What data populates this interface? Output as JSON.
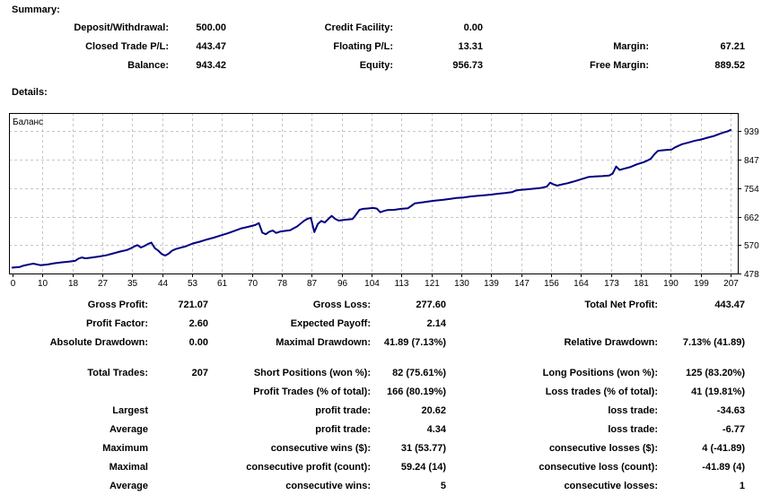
{
  "headings": {
    "summary": "Summary:",
    "details": "Details:"
  },
  "summary": {
    "rows": [
      {
        "l1": "Deposit/Withdrawal:",
        "v1": "500.00",
        "l2": "Credit Facility:",
        "v2": "0.00",
        "l3": "",
        "v3": ""
      },
      {
        "l1": "Closed Trade P/L:",
        "v1": "443.47",
        "l2": "Floating P/L:",
        "v2": "13.31",
        "l3": "Margin:",
        "v3": "67.21"
      },
      {
        "l1": "Balance:",
        "v1": "943.42",
        "l2": "Equity:",
        "v2": "956.73",
        "l3": "Free Margin:",
        "v3": "889.52"
      }
    ]
  },
  "details": {
    "rows": [
      {
        "l1": "Gross Profit:",
        "v1": "721.07",
        "l2": "Gross Loss:",
        "v2": "277.60",
        "l3": "Total Net Profit:",
        "v3": "443.47"
      },
      {
        "l1": "Profit Factor:",
        "v1": "2.60",
        "l2": "Expected Payoff:",
        "v2": "2.14",
        "l3": "",
        "v3": ""
      },
      {
        "l1": "Absolute Drawdown:",
        "v1": "0.00",
        "l2": "Maximal Drawdown:",
        "v2": "41.89 (7.13%)",
        "l3": "Relative Drawdown:",
        "v3": "7.13% (41.89)"
      },
      {
        "l1": "Total Trades:",
        "v1": "207",
        "l2": "Short Positions (won %):",
        "v2": "82 (75.61%)",
        "l3": "Long Positions (won %):",
        "v3": "125 (83.20%)"
      },
      {
        "l1": "",
        "v1": "",
        "l2": "Profit Trades (% of total):",
        "v2": "166 (80.19%)",
        "l3": "Loss trades (% of total):",
        "v3": "41 (19.81%)"
      },
      {
        "l1": "Largest",
        "v1": "",
        "l2": "profit trade:",
        "v2": "20.62",
        "l3": "loss trade:",
        "v3": "-34.63"
      },
      {
        "l1": "Average",
        "v1": "",
        "l2": "profit trade:",
        "v2": "4.34",
        "l3": "loss trade:",
        "v3": "-6.77"
      },
      {
        "l1": "Maximum",
        "v1": "",
        "l2": "consecutive wins ($):",
        "v2": "31 (53.77)",
        "l3": "consecutive losses ($):",
        "v3": "4 (-41.89)"
      },
      {
        "l1": "Maximal",
        "v1": "",
        "l2": "consecutive profit (count):",
        "v2": "59.24 (14)",
        "l3": "consecutive loss (count):",
        "v3": "-41.89 (4)"
      },
      {
        "l1": "Average",
        "v1": "",
        "l2": "consecutive wins:",
        "v2": "5",
        "l3": "consecutive losses:",
        "v3": "1"
      }
    ]
  },
  "chart_data": {
    "type": "line",
    "title": "Баланс",
    "xlabel": "",
    "ylabel": "",
    "x_range": [
      0,
      207
    ],
    "y_range": [
      478,
      939
    ],
    "x_ticks": [
      0,
      10,
      18,
      27,
      35,
      44,
      53,
      61,
      70,
      78,
      87,
      96,
      104,
      113,
      121,
      130,
      139,
      147,
      156,
      164,
      173,
      181,
      190,
      199,
      207
    ],
    "y_ticks": [
      939,
      847,
      754,
      662,
      570,
      478
    ],
    "grid": "dashed",
    "grid_color": "#c6c6c6",
    "border_color": "#000000",
    "legend_position": "top-left-inside",
    "series": [
      {
        "name": "Баланс",
        "color": "#000080",
        "points": [
          [
            0,
            497
          ],
          [
            2,
            499
          ],
          [
            3,
            503
          ],
          [
            5,
            508
          ],
          [
            6,
            510
          ],
          [
            8,
            505
          ],
          [
            10,
            507
          ],
          [
            12,
            511
          ],
          [
            14,
            514
          ],
          [
            16,
            516
          ],
          [
            18,
            519
          ],
          [
            19,
            526
          ],
          [
            20,
            530
          ],
          [
            21,
            527
          ],
          [
            23,
            530
          ],
          [
            25,
            533
          ],
          [
            27,
            537
          ],
          [
            29,
            543
          ],
          [
            31,
            549
          ],
          [
            33,
            554
          ],
          [
            34,
            559
          ],
          [
            35,
            565
          ],
          [
            36,
            570
          ],
          [
            37,
            562
          ],
          [
            38,
            567
          ],
          [
            39,
            573
          ],
          [
            40,
            578
          ],
          [
            41,
            560
          ],
          [
            42,
            552
          ],
          [
            43,
            541
          ],
          [
            44,
            536
          ],
          [
            45,
            542
          ],
          [
            46,
            552
          ],
          [
            47,
            557
          ],
          [
            48,
            560
          ],
          [
            50,
            566
          ],
          [
            52,
            575
          ],
          [
            54,
            581
          ],
          [
            56,
            588
          ],
          [
            58,
            594
          ],
          [
            60,
            601
          ],
          [
            62,
            608
          ],
          [
            64,
            616
          ],
          [
            66,
            624
          ],
          [
            68,
            629
          ],
          [
            70,
            635
          ],
          [
            71,
            641
          ],
          [
            72,
            610
          ],
          [
            73,
            605
          ],
          [
            74,
            613
          ],
          [
            75,
            617
          ],
          [
            76,
            609
          ],
          [
            77,
            613
          ],
          [
            78,
            615
          ],
          [
            80,
            618
          ],
          [
            82,
            630
          ],
          [
            84,
            648
          ],
          [
            85,
            655
          ],
          [
            86,
            658
          ],
          [
            87,
            612
          ],
          [
            88,
            638
          ],
          [
            89,
            648
          ],
          [
            90,
            643
          ],
          [
            91,
            654
          ],
          [
            92,
            664
          ],
          [
            93,
            655
          ],
          [
            94,
            649
          ],
          [
            96,
            652
          ],
          [
            98,
            654
          ],
          [
            99,
            668
          ],
          [
            100,
            684
          ],
          [
            101,
            687
          ],
          [
            102,
            688
          ],
          [
            104,
            690
          ],
          [
            105,
            688
          ],
          [
            106,
            676
          ],
          [
            107,
            680
          ],
          [
            108,
            683
          ],
          [
            110,
            684
          ],
          [
            112,
            687
          ],
          [
            114,
            689
          ],
          [
            115,
            697
          ],
          [
            116,
            705
          ],
          [
            118,
            708
          ],
          [
            120,
            711
          ],
          [
            122,
            714
          ],
          [
            124,
            716
          ],
          [
            126,
            719
          ],
          [
            128,
            722
          ],
          [
            130,
            724
          ],
          [
            132,
            727
          ],
          [
            134,
            729
          ],
          [
            136,
            731
          ],
          [
            138,
            733
          ],
          [
            140,
            736
          ],
          [
            142,
            738
          ],
          [
            144,
            741
          ],
          [
            145,
            746
          ],
          [
            146,
            748
          ],
          [
            148,
            750
          ],
          [
            150,
            752
          ],
          [
            152,
            754
          ],
          [
            154,
            759
          ],
          [
            155,
            772
          ],
          [
            156,
            766
          ],
          [
            157,
            762
          ],
          [
            158,
            765
          ],
          [
            160,
            770
          ],
          [
            162,
            776
          ],
          [
            164,
            783
          ],
          [
            166,
            790
          ],
          [
            168,
            792
          ],
          [
            170,
            793
          ],
          [
            172,
            795
          ],
          [
            173,
            801
          ],
          [
            174,
            824
          ],
          [
            175,
            813
          ],
          [
            176,
            816
          ],
          [
            178,
            822
          ],
          [
            180,
            831
          ],
          [
            182,
            838
          ],
          [
            183,
            843
          ],
          [
            184,
            849
          ],
          [
            185,
            863
          ],
          [
            186,
            874
          ],
          [
            187,
            876
          ],
          [
            188,
            877
          ],
          [
            190,
            879
          ],
          [
            191,
            886
          ],
          [
            192,
            891
          ],
          [
            193,
            896
          ],
          [
            194,
            899
          ],
          [
            195,
            902
          ],
          [
            196,
            905
          ],
          [
            197,
            908
          ],
          [
            198,
            910
          ],
          [
            199,
            913
          ],
          [
            200,
            916
          ],
          [
            201,
            919
          ],
          [
            202,
            922
          ],
          [
            203,
            926
          ],
          [
            204,
            930
          ],
          [
            205,
            934
          ],
          [
            206,
            937
          ],
          [
            207,
            942
          ]
        ]
      }
    ]
  }
}
